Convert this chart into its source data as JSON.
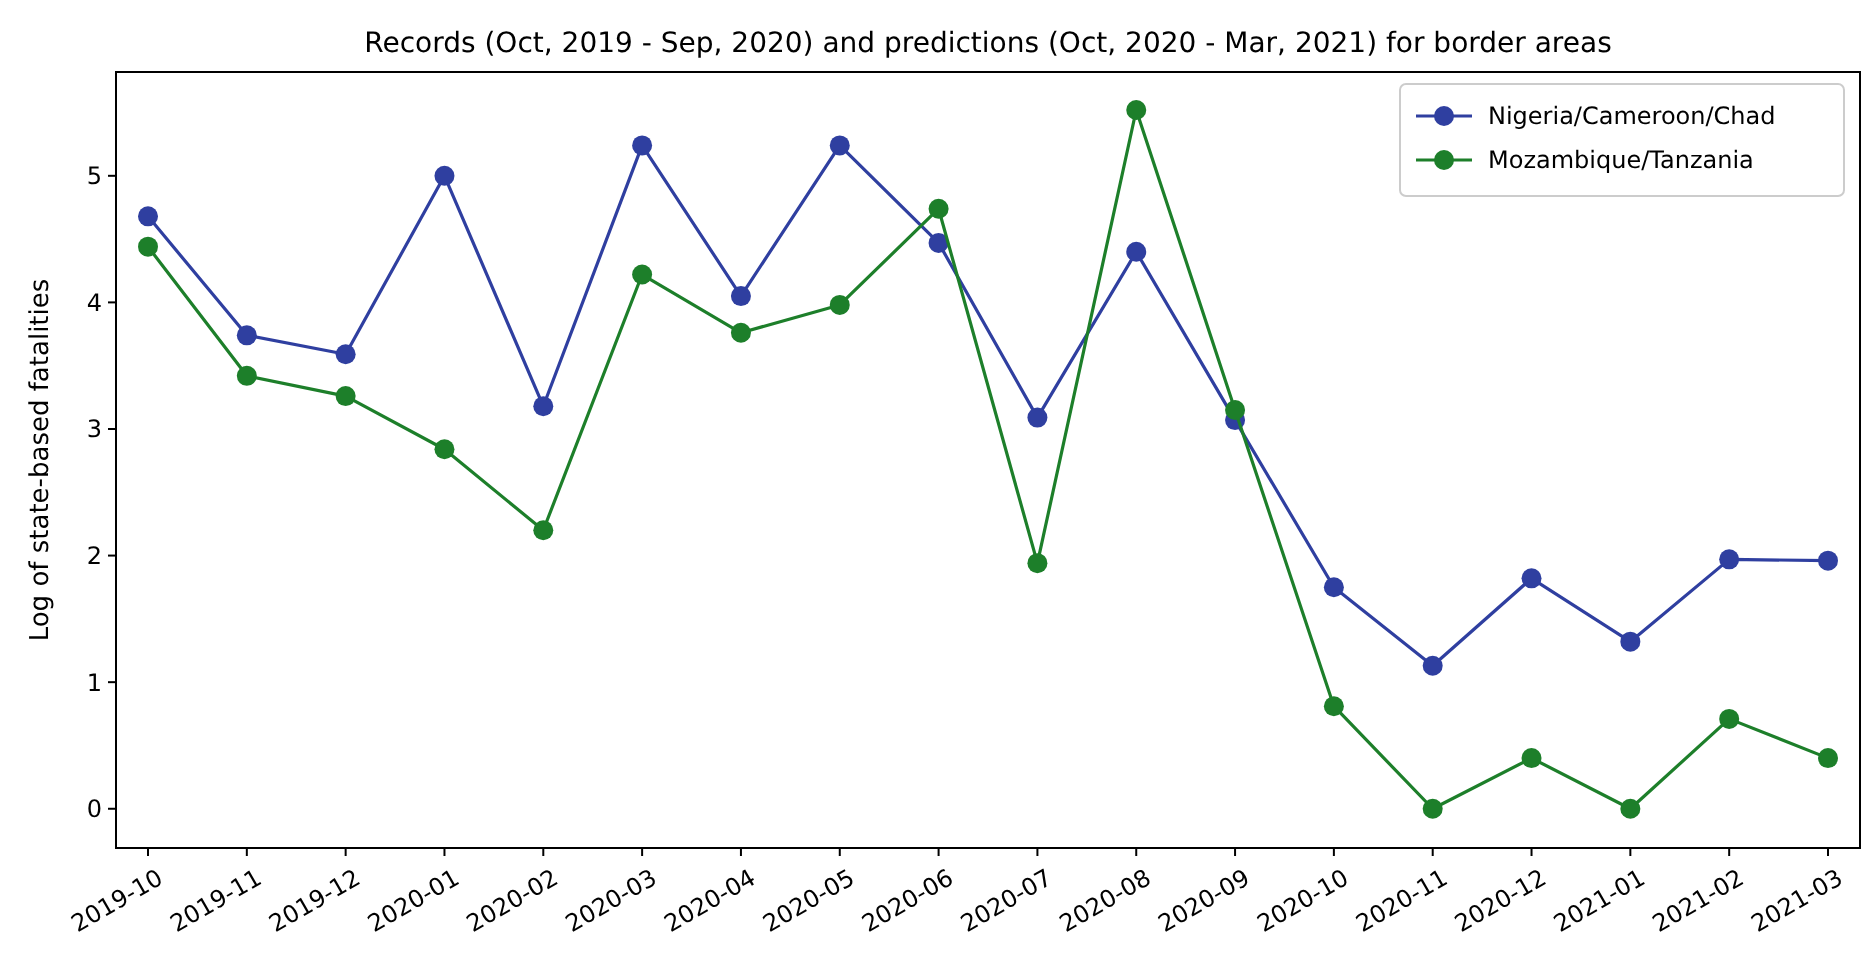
{
  "chart_data": {
    "type": "line",
    "title": "Records (Oct, 2019 - Sep, 2020) and predictions (Oct, 2020 - Mar, 2021) for border areas",
    "ylabel": "Log of state-based fatalities",
    "categories": [
      "2019-10",
      "2019-11",
      "2019-12",
      "2020-01",
      "2020-02",
      "2020-03",
      "2020-04",
      "2020-05",
      "2020-06",
      "2020-07",
      "2020-08",
      "2020-09",
      "2020-10",
      "2020-11",
      "2020-12",
      "2021-01",
      "2021-02",
      "2021-03"
    ],
    "series": [
      {
        "name": "Nigeria/Cameroon/Chad",
        "color": "#2f3fa0",
        "values": [
          4.68,
          3.74,
          3.59,
          5.0,
          3.18,
          5.24,
          4.05,
          5.24,
          4.47,
          3.09,
          4.4,
          3.07,
          1.75,
          1.13,
          1.82,
          1.32,
          1.97,
          1.96
        ]
      },
      {
        "name": "Mozambique/Tanzania",
        "color": "#1d7f2a",
        "values": [
          4.44,
          3.42,
          3.26,
          2.84,
          2.2,
          4.22,
          3.76,
          3.98,
          4.74,
          1.94,
          5.52,
          3.15,
          0.81,
          0,
          0.4,
          0,
          0.71,
          0.4
        ]
      }
    ],
    "ylim": [
      -0.31,
      5.82
    ],
    "yticks": [
      0,
      1,
      2,
      3,
      4,
      5
    ],
    "grid": false,
    "legend": "top right",
    "marker": "circle",
    "line_style": "solid"
  }
}
